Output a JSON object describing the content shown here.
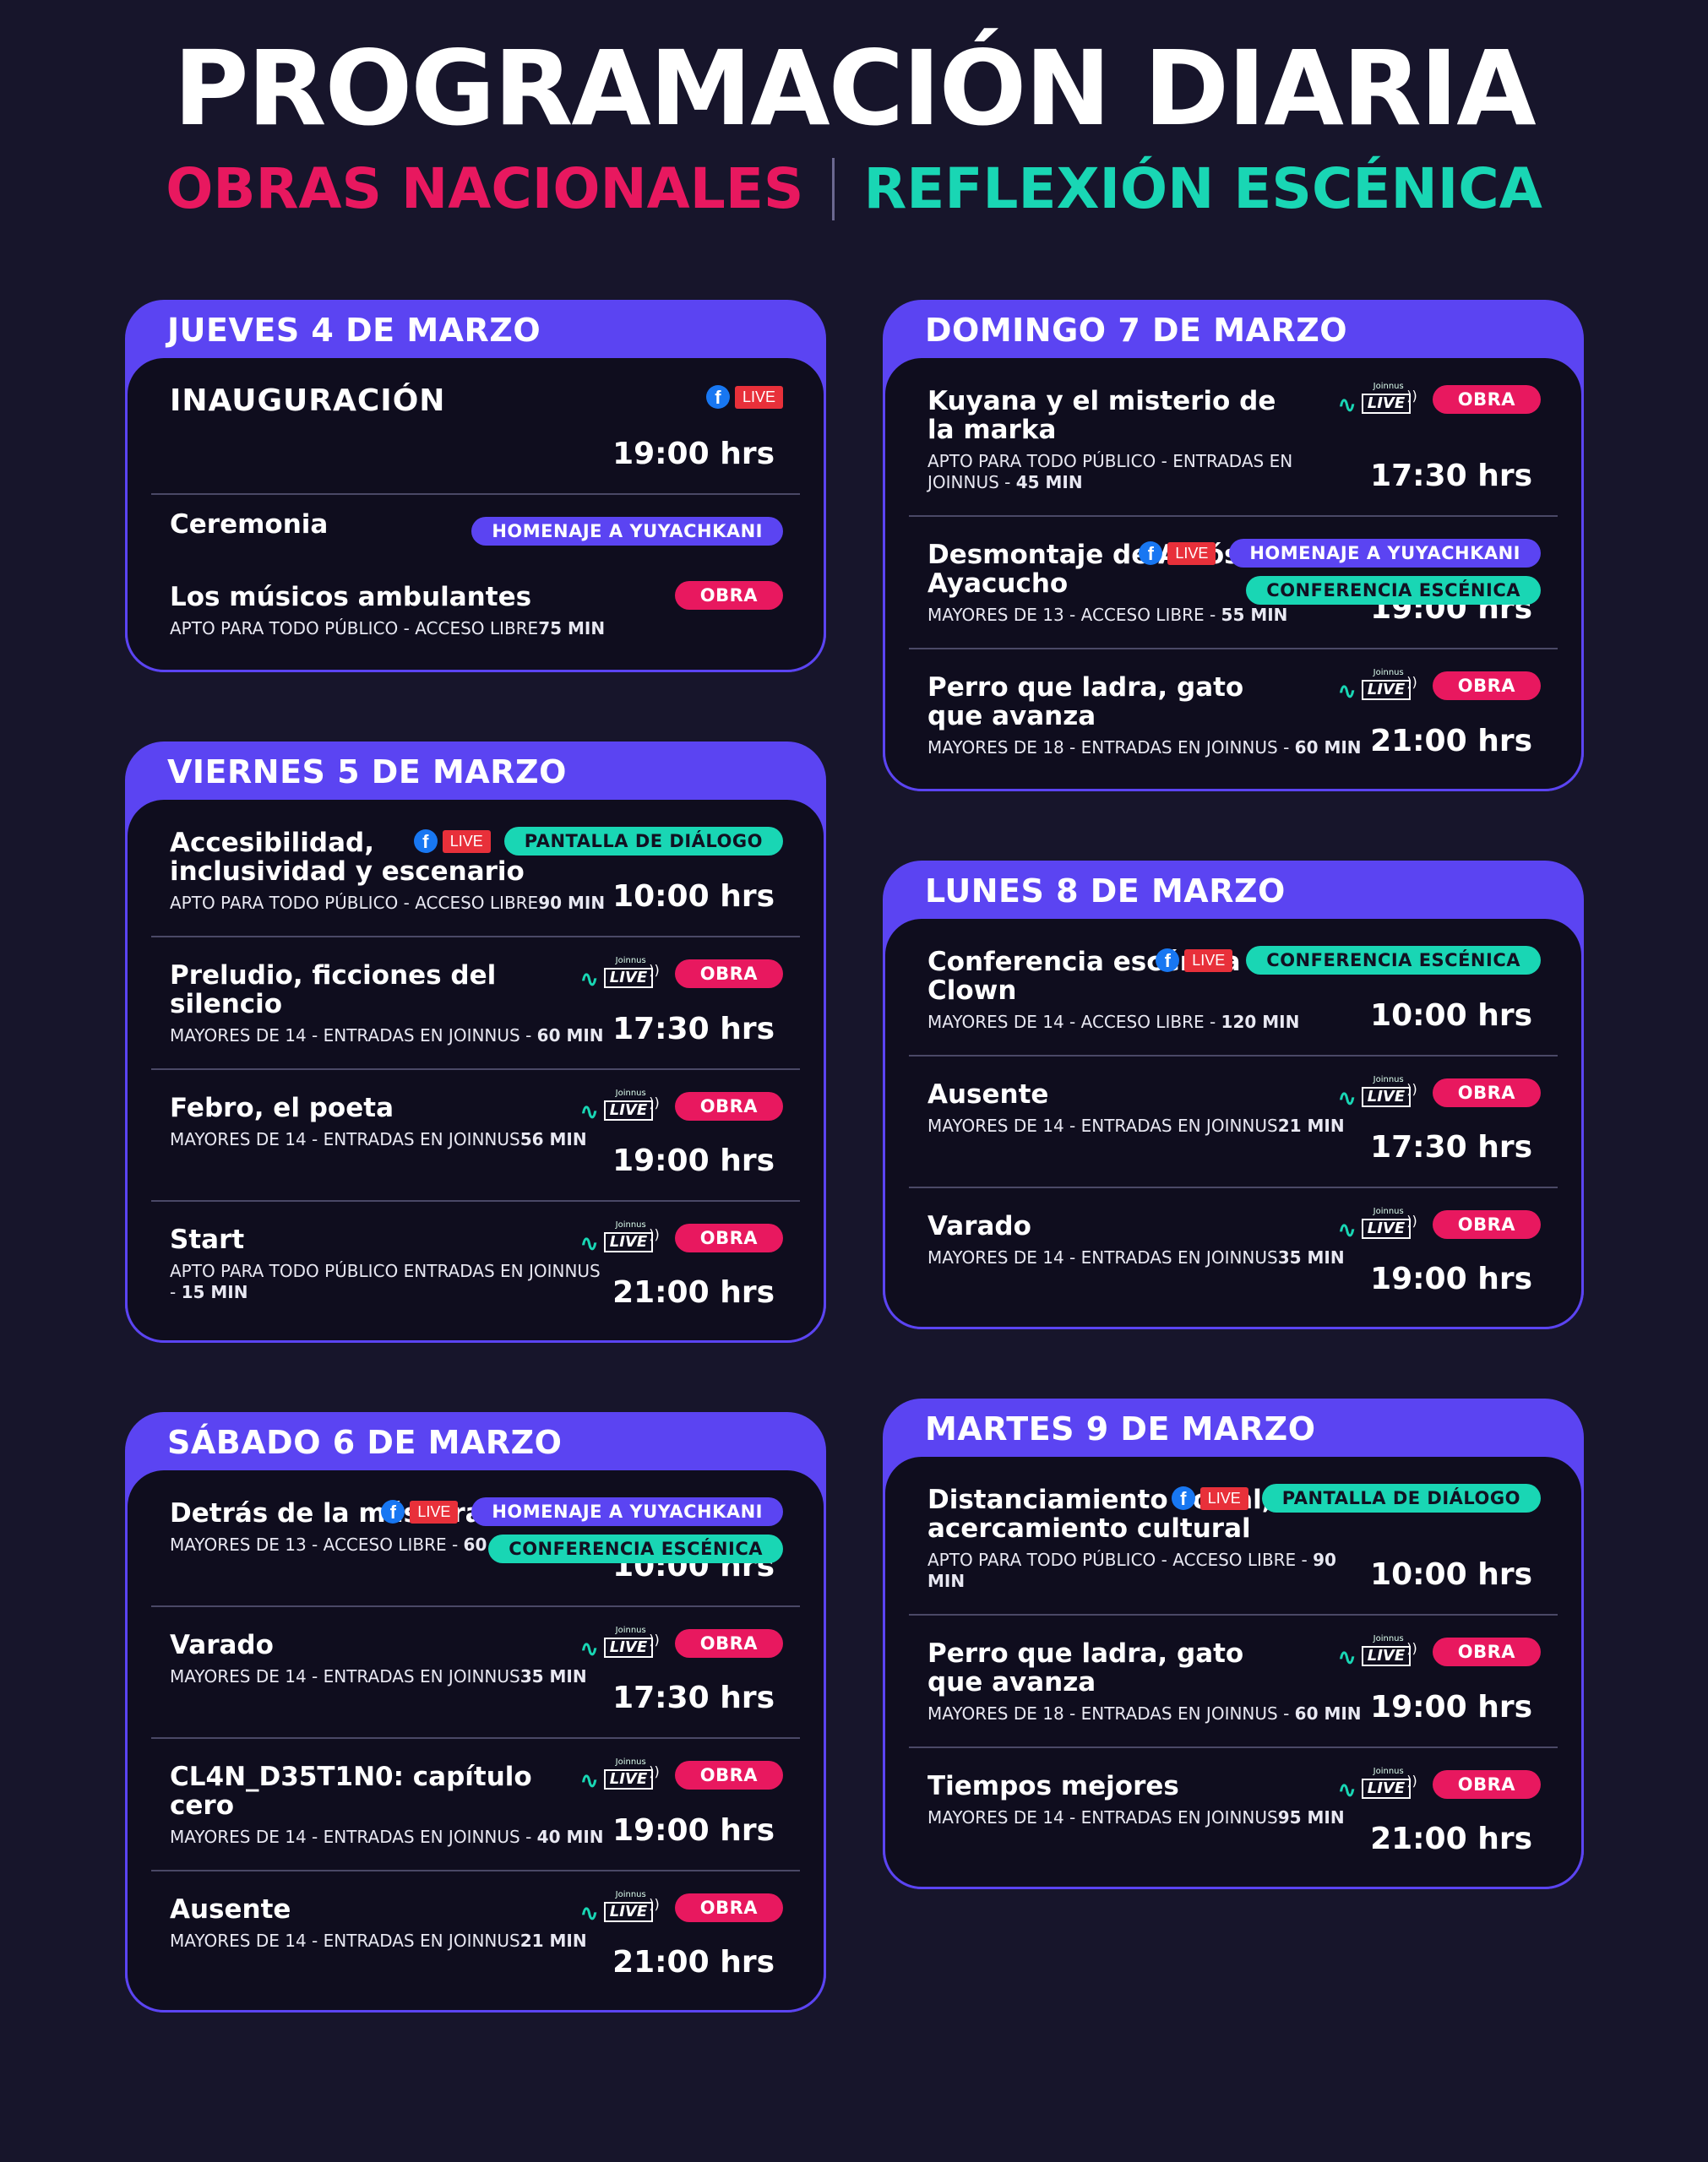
{
  "header": {
    "title": "PROGRAMACIÓN DIARIA",
    "sub_left": "OBRAS NACIONALES",
    "sub_right": "REFLEXIÓN ESCÉNICA"
  },
  "colors": {
    "purple": "#5b44f2",
    "pink": "#e8185f",
    "teal": "#19d6b4",
    "background": "#17152b"
  },
  "badges": {
    "live": "LIVE",
    "joinnus_live": "LIVE",
    "joinnus_brand": "Joinnus",
    "obra": "OBRA"
  },
  "left": [
    {
      "day": "JUEVES 4 DE MARZO",
      "events": [
        {
          "title": "INAUGURACIÓN",
          "meta": "",
          "meta_bold": "",
          "time": "19:00 hrs",
          "live": "fb",
          "tags": []
        },
        {
          "title": "Ceremonia",
          "meta": "",
          "meta_bold": "",
          "time": "",
          "live": "",
          "tags": [
            "HOMENAJE A YUYACHKANI"
          ]
        },
        {
          "title": "Los músicos ambulantes",
          "meta": "APTO PARA TODO PÚBLICO - ACCESO LIBRE",
          "meta_bold": "75 MIN",
          "time": "",
          "live": "",
          "tags": [
            "OBRA"
          ]
        }
      ]
    },
    {
      "day": "VIERNES 5 DE MARZO",
      "events": [
        {
          "title": "Accesibilidad, inclusividad y escenario",
          "meta": "APTO PARA TODO PÚBLICO - ACCESO LIBRE",
          "meta_bold": "90 MIN",
          "time": "10:00 hrs",
          "live": "fb",
          "tags": [
            "PANTALLA DE DIÁLOGO"
          ]
        },
        {
          "title": "Preludio, ficciones del silencio",
          "meta": "MAYORES DE 14 - ENTRADAS EN JOINNUS - ",
          "meta_bold": "60 MIN",
          "time": "17:30 hrs",
          "live": "joinnus",
          "tags": [
            "OBRA"
          ]
        },
        {
          "title": "Febro, el poeta",
          "meta": "MAYORES DE 14 - ENTRADAS EN JOINNUS",
          "meta_bold": "56 MIN",
          "time": "19:00 hrs",
          "live": "joinnus",
          "tags": [
            "OBRA"
          ]
        },
        {
          "title": "Start",
          "meta": "APTO PARA TODO PÚBLICO ENTRADAS EN JOINNUS - ",
          "meta_bold": "15 MIN",
          "time": "21:00 hrs",
          "live": "joinnus",
          "tags": [
            "OBRA"
          ]
        }
      ]
    },
    {
      "day": "SÁBADO 6 DE MARZO",
      "events": [
        {
          "title": "Detrás de la máscara",
          "meta": "MAYORES DE 13 - ACCESO LIBRE - ",
          "meta_bold": "60 MIN",
          "time": "10:00 hrs",
          "live": "fb",
          "tags": [
            "HOMENAJE A YUYACHKANI",
            "CONFERENCIA ESCÉNICA"
          ]
        },
        {
          "title": "Varado",
          "meta": "MAYORES DE 14 - ENTRADAS EN JOINNUS",
          "meta_bold": "35 MIN",
          "time": "17:30 hrs",
          "live": "joinnus",
          "tags": [
            "OBRA"
          ]
        },
        {
          "title": "CL4N_D35T1N0: capítulo cero",
          "meta": "MAYORES DE 14 - ENTRADAS EN JOINNUS - ",
          "meta_bold": "40 MIN",
          "time": "19:00 hrs",
          "live": "joinnus",
          "tags": [
            "OBRA"
          ]
        },
        {
          "title": "Ausente",
          "meta": "MAYORES DE 14 - ENTRADAS EN JOINNUS",
          "meta_bold": "21 MIN",
          "time": "21:00 hrs",
          "live": "joinnus",
          "tags": [
            "OBRA"
          ]
        }
      ]
    }
  ],
  "right": [
    {
      "day": "DOMINGO 7 DE MARZO",
      "events": [
        {
          "title": "Kuyana y el misterio de la marka",
          "meta": "APTO PARA TODO PÚBLICO - ENTRADAS EN JOINNUS - ",
          "meta_bold": "45 MIN",
          "time": "17:30 hrs",
          "live": "joinnus",
          "tags": [
            "OBRA"
          ]
        },
        {
          "title": "Desmontaje de Adiós Ayacucho",
          "meta": "MAYORES DE 13 - ACCESO LIBRE - ",
          "meta_bold": "55 MIN",
          "time": "19:00 hrs",
          "live": "fb",
          "tags": [
            "HOMENAJE A YUYACHKANI",
            "CONFERENCIA ESCÉNICA"
          ]
        },
        {
          "title": "Perro que ladra, gato que avanza",
          "meta": "MAYORES DE 18 - ENTRADAS EN JOINNUS - ",
          "meta_bold": "60 MIN",
          "time": "21:00 hrs",
          "live": "joinnus",
          "tags": [
            "OBRA"
          ]
        }
      ]
    },
    {
      "day": "LUNES 8 DE MARZO",
      "events": [
        {
          "title": "Conferencia escénica de Clown",
          "meta": "MAYORES DE 14 - ACCESO LIBRE - ",
          "meta_bold": "120 MIN",
          "time": "10:00 hrs",
          "live": "fb",
          "tags": [
            "CONFERENCIA ESCÉNICA"
          ]
        },
        {
          "title": "Ausente",
          "meta": "MAYORES DE 14 - ENTRADAS EN JOINNUS",
          "meta_bold": "21 MIN",
          "time": "17:30 hrs",
          "live": "joinnus",
          "tags": [
            "OBRA"
          ]
        },
        {
          "title": "Varado",
          "meta": "MAYORES DE 14 - ENTRADAS EN JOINNUS",
          "meta_bold": "35 MIN",
          "time": "19:00 hrs",
          "live": "joinnus",
          "tags": [
            "OBRA"
          ]
        }
      ]
    },
    {
      "day": "MARTES 9 DE MARZO",
      "events": [
        {
          "title": "Distanciamiento social, acercamiento cultural",
          "meta": "APTO PARA TODO PÚBLICO - ACCESO LIBRE - ",
          "meta_bold": "90 MIN",
          "time": "10:00 hrs",
          "live": "fb",
          "tags": [
            "PANTALLA DE DIÁLOGO"
          ]
        },
        {
          "title": "Perro que ladra, gato que avanza",
          "meta": "MAYORES DE 18 - ENTRADAS EN JOINNUS - ",
          "meta_bold": "60 MIN",
          "time": "19:00 hrs",
          "live": "joinnus",
          "tags": [
            "OBRA"
          ]
        },
        {
          "title": "Tiempos mejores",
          "meta": "MAYORES DE 14 - ENTRADAS EN JOINNUS",
          "meta_bold": "95 MIN",
          "time": "21:00 hrs",
          "live": "joinnus",
          "tags": [
            "OBRA"
          ]
        }
      ]
    }
  ]
}
